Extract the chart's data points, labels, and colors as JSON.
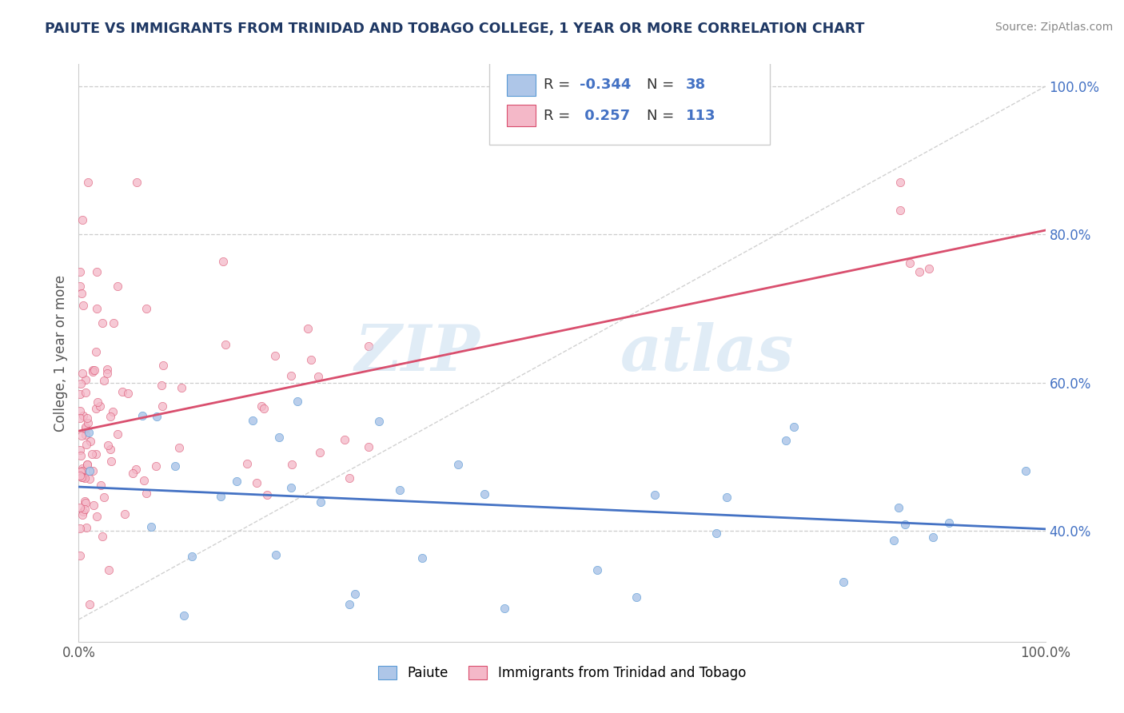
{
  "title": "PAIUTE VS IMMIGRANTS FROM TRINIDAD AND TOBAGO COLLEGE, 1 YEAR OR MORE CORRELATION CHART",
  "source": "Source: ZipAtlas.com",
  "ylabel": "College, 1 year or more",
  "legend_label1": "Paiute",
  "legend_label2": "Immigrants from Trinidad and Tobago",
  "r1": -0.344,
  "n1": 38,
  "r2": 0.257,
  "n2": 113,
  "blue_scatter_color": "#aec6e8",
  "blue_scatter_edge": "#5b9bd5",
  "pink_scatter_color": "#f4b8c8",
  "pink_scatter_edge": "#d94f6e",
  "blue_line_color": "#4472c4",
  "pink_line_color": "#d94f6e",
  "diag_line_color": "#cccccc",
  "background_color": "#ffffff",
  "grid_color": "#cccccc",
  "title_color": "#1f3864",
  "ytick_color": "#4472c4",
  "source_color": "#888888",
  "xlim": [
    0.0,
    1.0
  ],
  "ylim": [
    0.25,
    1.03
  ],
  "yticks": [
    0.4,
    0.6,
    0.8,
    1.0
  ],
  "ytick_labels": [
    "40.0%",
    "60.0%",
    "80.0%",
    "100.0%"
  ]
}
